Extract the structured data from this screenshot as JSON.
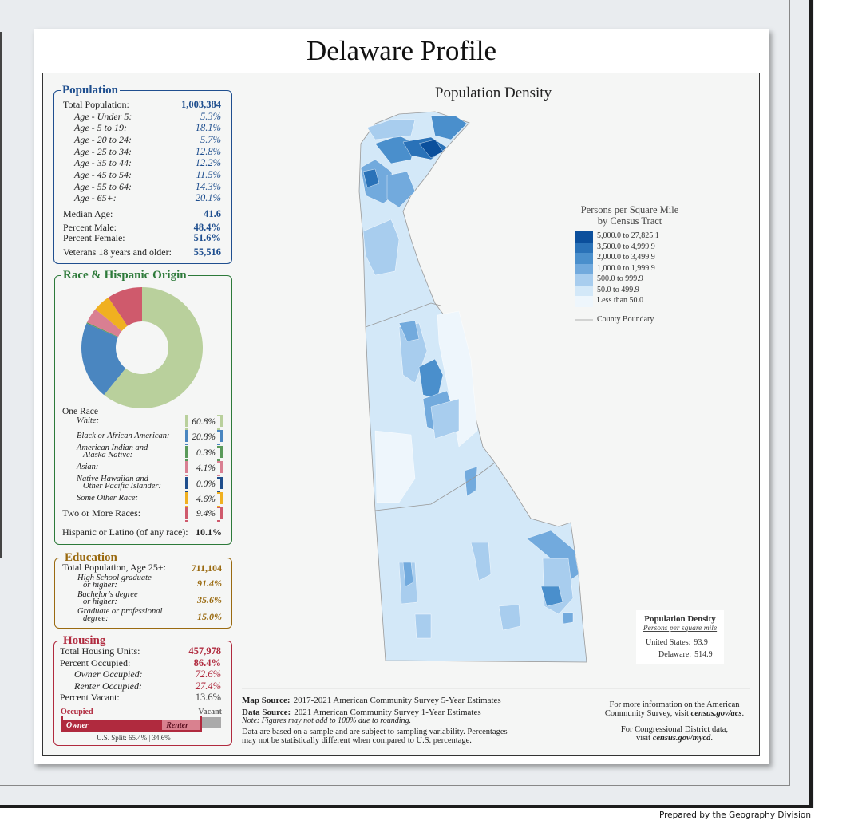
{
  "title": "Delaware Profile",
  "population": {
    "heading": "Population",
    "rows": [
      {
        "label": "Total Population:",
        "value": "1,003,384"
      },
      {
        "label": "Age - Under 5:",
        "value": "5.3%"
      },
      {
        "label": "Age - 5 to 19:",
        "value": "18.1%"
      },
      {
        "label": "Age - 20 to 24:",
        "value": "5.7%"
      },
      {
        "label": "Age - 25 to 34:",
        "value": "12.8%"
      },
      {
        "label": "Age - 35 to 44:",
        "value": "12.2%"
      },
      {
        "label": "Age - 45 to 54:",
        "value": "11.5%"
      },
      {
        "label": "Age - 55 to 64:",
        "value": "14.3%"
      },
      {
        "label": "Age - 65+:",
        "value": "20.1%"
      },
      {
        "label": "Median Age:",
        "value": "41.6"
      },
      {
        "label": "Percent Male:",
        "value": "48.4%"
      },
      {
        "label": "Percent Female:",
        "value": "51.6%"
      },
      {
        "label": "Veterans 18 years and older:",
        "value": "55,516"
      }
    ]
  },
  "race": {
    "heading": "Race & Hispanic Origin",
    "one_race": "One Race",
    "items": [
      {
        "label": [
          "White:"
        ],
        "value": 60.8,
        "value_label": "60.8%",
        "color": "#b9d09c"
      },
      {
        "label": [
          "Black or African American:"
        ],
        "value": 20.8,
        "value_label": "20.8%",
        "color": "#4a86c0"
      },
      {
        "label": [
          "American Indian and",
          "Alaska Native:"
        ],
        "value": 0.3,
        "value_label": "0.3%",
        "color": "#5a9a5a"
      },
      {
        "label": [
          "Asian:"
        ],
        "value": 4.1,
        "value_label": "4.1%",
        "color": "#d97f92"
      },
      {
        "label": [
          "Native Hawaiian and",
          "Other Pacific Islander:"
        ],
        "value": 0.0,
        "value_label": "0.0%",
        "color": "#1f4e8c"
      },
      {
        "label": [
          "Some Other Race:"
        ],
        "value": 4.6,
        "value_label": "4.6%",
        "color": "#f0b020"
      },
      {
        "label": [
          "Two or More Races:"
        ],
        "value": 9.4,
        "value_label": "9.4%",
        "color": "#cf5a6c"
      }
    ],
    "hispanic": {
      "label": "Hispanic or Latino (of any race):",
      "value": "10.1%"
    }
  },
  "education": {
    "heading": "Education",
    "rows": [
      {
        "label": [
          "Total Population, Age 25+:"
        ],
        "value": "711,104"
      },
      {
        "label": [
          "High School  graduate",
          "or higher:"
        ],
        "value": "91.4%"
      },
      {
        "label": [
          "Bachelor's degree",
          "or higher:"
        ],
        "value": "35.6%"
      },
      {
        "label": [
          "Graduate or professional",
          "degree:"
        ],
        "value": "15.0%"
      }
    ]
  },
  "housing": {
    "heading": "Housing",
    "rows": [
      {
        "label": "Total Housing Units:",
        "value_label": "457,978"
      },
      {
        "label": "Percent Occupied:",
        "value": 86.4,
        "value_label": "86.4%"
      },
      {
        "label": "Owner Occupied:",
        "value": 72.6,
        "value_label": "72.6%"
      },
      {
        "label": "Renter Occupied:",
        "value": 27.4,
        "value_label": "27.4%"
      },
      {
        "label": "Percent Vacant:",
        "value": 13.6,
        "value_label": "13.6%"
      }
    ],
    "bar": {
      "occupied": "Occupied",
      "vacant": "Vacant",
      "owner": "Owner",
      "renter": "Renter",
      "us_split": "U.S. Split: 65.4% | 34.6%"
    }
  },
  "map": {
    "title": "Population Density",
    "legend_title": [
      "Persons per Square Mile",
      "by Census Tract"
    ],
    "legend": [
      {
        "label": "5,000.0 to 27,825.1",
        "color": "#0b4f9c"
      },
      {
        "label": "3,500.0 to 4,999.9",
        "color": "#2a72b8"
      },
      {
        "label": "2,000.0 to 3,499.9",
        "color": "#4a8fcc"
      },
      {
        "label": "1,000.0 to 1,999.9",
        "color": "#72aadd"
      },
      {
        "label": "500.0 to 999.9",
        "color": "#a8cdee"
      },
      {
        "label": "50.0 to 499.9",
        "color": "#d3e8f8"
      },
      {
        "label": "Less than 50.0",
        "color": "#eef6fc"
      }
    ],
    "county_boundary": "County Boundary",
    "density_box": {
      "title": "Population Density",
      "subtitle": "Persons per square mile",
      "rows": [
        {
          "label": "United States:",
          "value": "93.9"
        },
        {
          "label": "Delaware:",
          "value": "514.9"
        }
      ]
    }
  },
  "footer": {
    "map_source": {
      "label": "Map Source:",
      "text": "2017-2021 American Community Survey 5-Year Estimates"
    },
    "data_source": {
      "label": "Data Source:",
      "text": "2021 American Community Survey 1-Year Estimates"
    },
    "note": "Note: Figures may not add to 100% due to rounding.",
    "disclaimer": [
      "Data are based on a sample and are subject to sampling variability. Percentages",
      "may not be statistically different when compared to U.S. percentage."
    ],
    "acs": [
      {
        "text": "For more information on the American"
      },
      {
        "text": "Community Survey, visit ",
        "link": "census.gov/acs",
        "end": "."
      }
    ],
    "cd": [
      {
        "text": "For Congressional District data,"
      },
      {
        "text": "visit ",
        "link": "census.gov/mycd",
        "end": "."
      }
    ]
  },
  "prepared_by": "Prepared by the Geography Division"
}
